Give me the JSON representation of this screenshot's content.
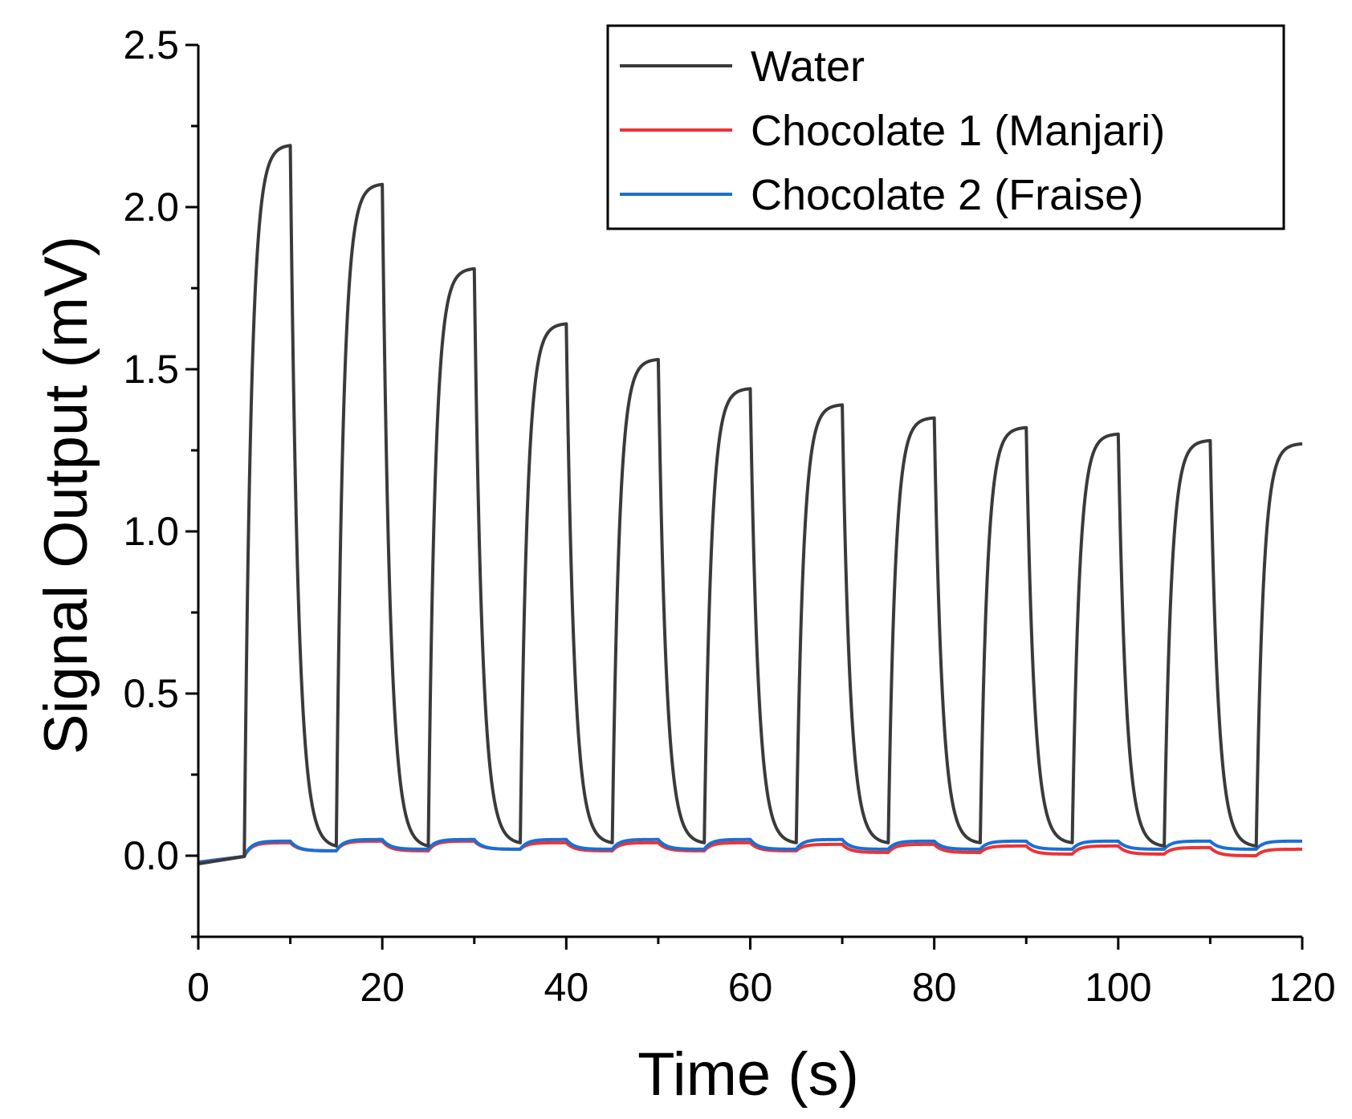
{
  "chart_data": {
    "type": "line",
    "xlabel": "Time (s)",
    "ylabel": "Signal Output (mV)",
    "xlim": [
      0,
      120
    ],
    "ylim": [
      -0.25,
      2.5
    ],
    "xticks": [
      0,
      20,
      40,
      60,
      80,
      100,
      120
    ],
    "xtick_labels": [
      "0",
      "20",
      "40",
      "60",
      "80",
      "100",
      "120"
    ],
    "yticks": [
      0.0,
      0.5,
      1.0,
      1.5,
      2.0,
      2.5
    ],
    "ytick_labels": [
      "0.0",
      "0.5",
      "1.0",
      "1.5",
      "2.0",
      "2.5"
    ],
    "grid": false,
    "legend_position": "top-right",
    "pulse_period_s": 10,
    "pulse_on_s": 5,
    "first_pulse_start_s": 5,
    "series": [
      {
        "name": "Water",
        "color": "#3a3a3a",
        "baseline_start": -0.025,
        "pulse_peaks": [
          2.19,
          2.07,
          1.81,
          1.64,
          1.53,
          1.44,
          1.39,
          1.35,
          1.32,
          1.3,
          1.28,
          1.27
        ],
        "pulse_troughs": [
          0.03,
          0.03,
          0.04,
          0.04,
          0.04,
          0.04,
          0.04,
          0.04,
          0.04,
          0.03,
          0.03
        ]
      },
      {
        "name": "Chocolate 1 (Manjari)",
        "color": "#ee3333",
        "baseline_start": -0.02,
        "pulse_peaks": [
          0.04,
          0.045,
          0.045,
          0.04,
          0.04,
          0.04,
          0.035,
          0.035,
          0.03,
          0.03,
          0.025,
          0.02
        ],
        "pulse_troughs": [
          0.015,
          0.015,
          0.02,
          0.015,
          0.015,
          0.015,
          0.01,
          0.01,
          0.005,
          0.005,
          0.0
        ]
      },
      {
        "name": "Chocolate 2 (Fraise)",
        "color": "#1a6fd6",
        "baseline_start": -0.02,
        "pulse_peaks": [
          0.045,
          0.05,
          0.05,
          0.05,
          0.05,
          0.05,
          0.05,
          0.045,
          0.045,
          0.045,
          0.045,
          0.045
        ],
        "pulse_troughs": [
          0.015,
          0.02,
          0.02,
          0.02,
          0.02,
          0.02,
          0.02,
          0.02,
          0.02,
          0.02,
          0.02
        ]
      }
    ]
  }
}
